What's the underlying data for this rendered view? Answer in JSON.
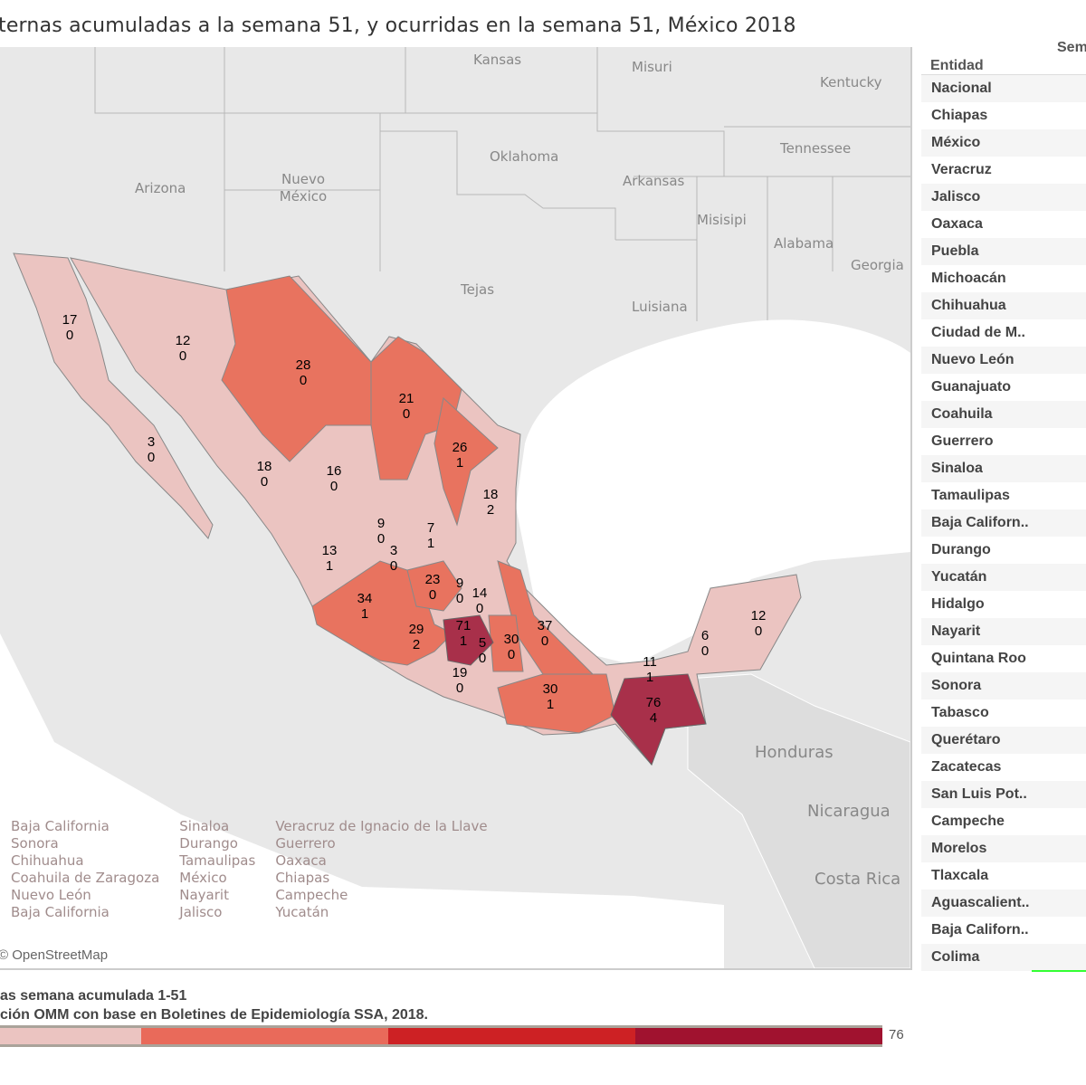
{
  "title": "ternas acumuladas a la semana 51, y ocurridas en la semana 51, México 2018",
  "colors": {
    "light": "#ebc4c1",
    "medium": "#e8735f",
    "dark": "#a8304a",
    "land": "#e4e4e4",
    "water": "#ffffff"
  },
  "map": {
    "background_labels": [
      "Kansas",
      "Misuri",
      "Kentucky",
      "Oklahoma",
      "Tennessee",
      "Arizona",
      "Nuevo México",
      "Arkansas",
      "Misisipi",
      "Alabama",
      "Georgia",
      "Tejas",
      "Luisiana",
      "Honduras",
      "Nicaragua",
      "Costa Rica"
    ],
    "state_name_labels": [
      "Baja California",
      "Sonora",
      "Chihuahua",
      "Coahuila de Zaragoza",
      "Nuevo León",
      "Baja California",
      "Sinaloa",
      "Durango",
      "Tamaulipas",
      "México",
      "Nayarit",
      "Jalisco",
      "Veracruz de Ignacio de la Llave",
      "Guerrero",
      "Oaxaca",
      "Chiapas",
      "Campeche",
      "Yucatán"
    ],
    "attribution": "© OpenStreetMap",
    "values": [
      {
        "state": "Baja California",
        "acum": "17",
        "week": "0"
      },
      {
        "state": "Sonora",
        "acum": "12",
        "week": "0"
      },
      {
        "state": "Chihuahua",
        "acum": "28",
        "week": "0"
      },
      {
        "state": "Coahuila",
        "acum": "21",
        "week": "0"
      },
      {
        "state": "Nuevo León",
        "acum": "26",
        "week": "1"
      },
      {
        "state": "Baja California Sur",
        "acum": "3",
        "week": "0"
      },
      {
        "state": "Sinaloa",
        "acum": "18",
        "week": "0"
      },
      {
        "state": "Durango",
        "acum": "16",
        "week": "0"
      },
      {
        "state": "Tamaulipas",
        "acum": "18",
        "week": "2"
      },
      {
        "state": "Zacatecas",
        "acum": "9",
        "week": "0"
      },
      {
        "state": "San Luis Potosí",
        "acum": "7",
        "week": "1"
      },
      {
        "state": "Nayarit",
        "acum": "13",
        "week": "1"
      },
      {
        "state": "Aguascalientes",
        "acum": "3",
        "week": "0"
      },
      {
        "state": "Guanajuato",
        "acum": "23",
        "week": "0"
      },
      {
        "state": "Querétaro",
        "acum": "9",
        "week": "0"
      },
      {
        "state": "Hidalgo",
        "acum": "14",
        "week": "0"
      },
      {
        "state": "Jalisco",
        "acum": "34",
        "week": "1"
      },
      {
        "state": "Veracruz",
        "acum": "37",
        "week": "0"
      },
      {
        "state": "Michoacán",
        "acum": "29",
        "week": "2"
      },
      {
        "state": "México",
        "acum": "71",
        "week": "1"
      },
      {
        "state": "Morelos",
        "acum": "5",
        "week": "0"
      },
      {
        "state": "Puebla",
        "acum": "30",
        "week": "0"
      },
      {
        "state": "Guerrero",
        "acum": "19",
        "week": "0"
      },
      {
        "state": "Oaxaca",
        "acum": "30",
        "week": "1"
      },
      {
        "state": "Chiapas",
        "acum": "76",
        "week": "4"
      },
      {
        "state": "Tabasco",
        "acum": "11",
        "week": "1"
      },
      {
        "state": "Campeche",
        "acum": "6",
        "week": "0"
      },
      {
        "state": "Quintana Roo",
        "acum": "12",
        "week": "0"
      }
    ]
  },
  "table": {
    "col1": "Entidad",
    "col2": "Sem",
    "rows": [
      "Nacional",
      "Chiapas",
      "México",
      "Veracruz",
      "Jalisco",
      "Oaxaca",
      "Puebla",
      "Michoacán",
      "Chihuahua",
      "Ciudad de M..",
      "Nuevo León",
      "Guanajuato",
      "Coahuila",
      "Guerrero",
      "Sinaloa",
      "Tamaulipas",
      "Baja Californ..",
      "Durango",
      "Yucatán",
      "Hidalgo",
      "Nayarit",
      "Quintana Roo",
      "Sonora",
      "Tabasco",
      "Querétaro",
      "Zacatecas",
      "San Luis Pot..",
      "Campeche",
      "Morelos",
      "Tlaxcala",
      "Aguascalient..",
      "Baja Californ..",
      "Colima"
    ]
  },
  "legend": {
    "line1": "as semana acumulada 1-51",
    "line2": "ción OMM con base en Boletines de Epidemiología SSA, 2018.",
    "max": "76",
    "bins": [
      {
        "color": "#ebc4c1",
        "share": 0.16
      },
      {
        "color": "#e96a5a",
        "share": 0.28
      },
      {
        "color": "#cd2124",
        "share": 0.28
      },
      {
        "color": "#a0122f",
        "share": 0.28
      }
    ]
  }
}
